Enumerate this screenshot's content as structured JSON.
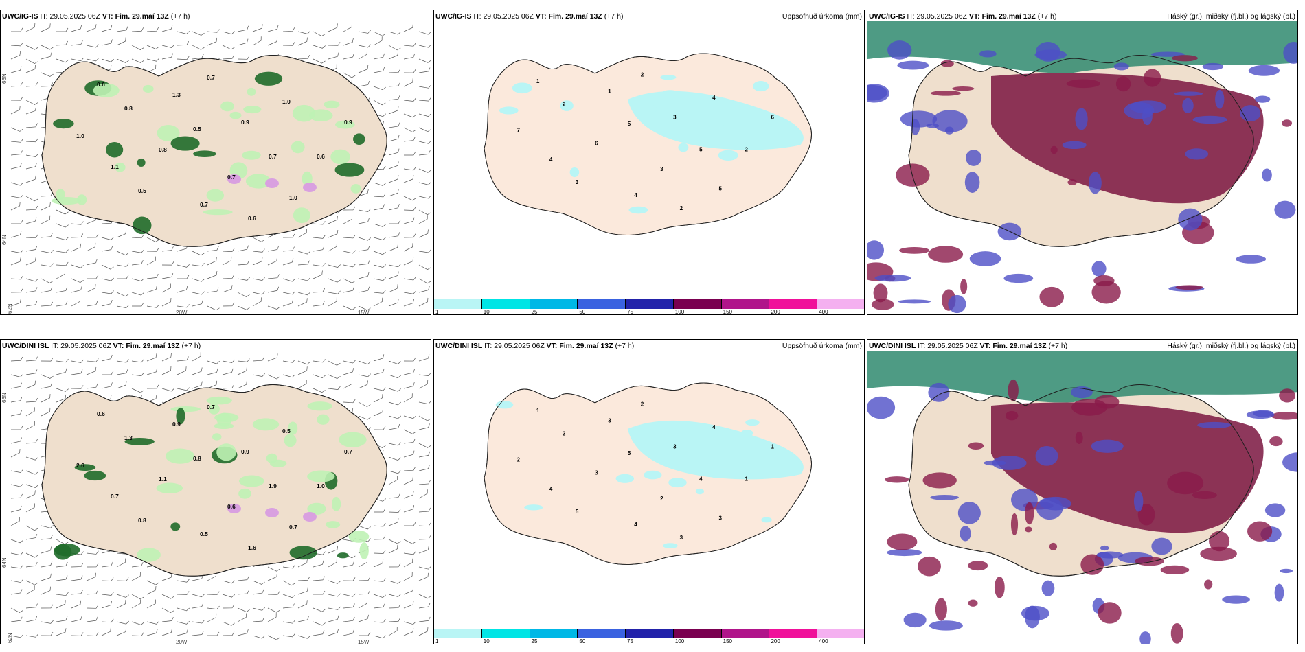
{
  "rows": [
    {
      "model": "UWC/IG-IS",
      "it_label": "IT:",
      "it_time": "29.05.2025 06Z",
      "vt_label": "VT:",
      "vt_time": "Fim. 29.maí 13Z",
      "lead": "(+7 h)"
    },
    {
      "model": "UWC/DINI ISL",
      "it_label": "IT:",
      "it_time": "29.05.2025 06Z",
      "vt_label": "VT:",
      "vt_time": "Fim. 29.maí 13Z",
      "lead": "(+7 h)"
    }
  ],
  "panel_titles": {
    "precip": "Uppsöfnuð úrkoma (mm)",
    "clouds": "Háský (gr.), miðský (fj.bl.) og lágský (bl.)"
  },
  "axis_labels": {
    "lat_66": "66N",
    "lat_64": "64N",
    "lat_62": "62N",
    "lon_20": "20W",
    "lon_15": "15W"
  },
  "colorbar": {
    "ticks": [
      "1",
      "10",
      "25",
      "50",
      "75",
      "100",
      "150",
      "200",
      "400"
    ],
    "colors": [
      "#b9f5f5",
      "#00e5e5",
      "#00b8e6",
      "#3a62e0",
      "#2222aa",
      "#7a0050",
      "#b0148a",
      "#f0109a",
      "#f4b0f0"
    ]
  },
  "wind_map": {
    "values_top": [
      "0.6",
      "0.7",
      "0.9",
      "1.0",
      "0.5",
      "0.8",
      "1.1",
      "0.7",
      "0.6",
      "1.0",
      "0.7",
      "0.5",
      "0.8",
      "1.3",
      "0.9",
      "0.7",
      "1.0",
      "0.6"
    ],
    "values_bottom": [
      "0.6",
      "0.7",
      "0.9",
      "0.5",
      "0.8",
      "1.1",
      "0.7",
      "0.6",
      "1.0",
      "0.7",
      "0.5",
      "0.8",
      "1.3",
      "0.9",
      "0.7",
      "1.9",
      "2.6",
      "1.6"
    ]
  },
  "precip_map": {
    "values_top": [
      "1",
      "2",
      "3",
      "4",
      "5",
      "6",
      "4",
      "3",
      "2",
      "5",
      "4",
      "3",
      "2",
      "1",
      "6",
      "5",
      "7",
      "2"
    ],
    "values_bottom": [
      "1",
      "2",
      "3",
      "4",
      "5",
      "3",
      "4",
      "2",
      "1",
      "3",
      "4",
      "5",
      "2",
      "3",
      "1",
      "4",
      "2",
      "3"
    ]
  }
}
